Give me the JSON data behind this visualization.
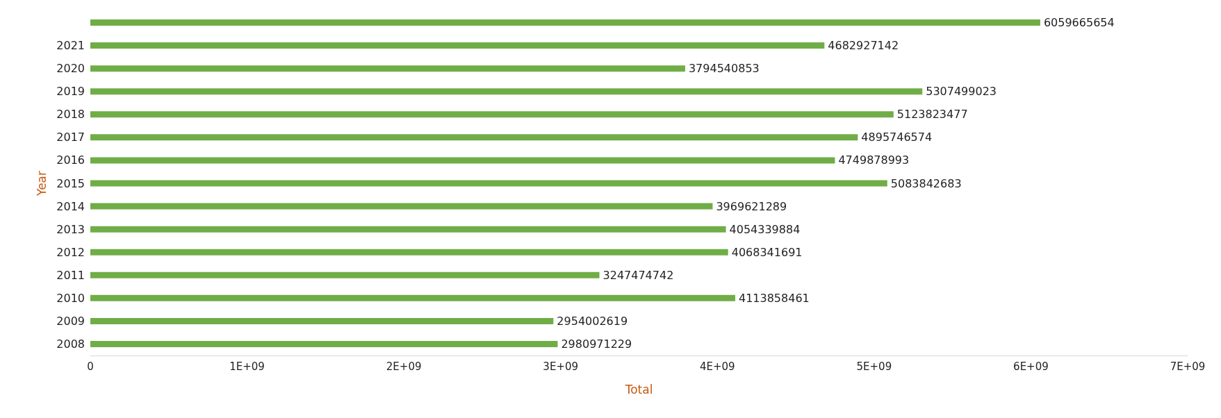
{
  "chart_data": {
    "type": "bar",
    "orientation": "horizontal",
    "xlabel": "Total",
    "ylabel": "Year",
    "categories": [
      null,
      "2021",
      "2020",
      "2019",
      "2018",
      "2017",
      "2016",
      "2015",
      "2014",
      "2013",
      "2012",
      "2011",
      "2010",
      "2009",
      "2008"
    ],
    "values": [
      6059665654,
      4682927142,
      3794540853,
      5307499023,
      5123823477,
      4895746574,
      4749878993,
      5083842683,
      3969621289,
      4054339884,
      4068341691,
      3247474742,
      4113858461,
      2954002619,
      2980971229
    ],
    "color": "#70ad47",
    "data_labels": true,
    "grid": false,
    "xlim": [
      0,
      7000000000
    ],
    "xticks": [
      0,
      {
        "value": 1000000000,
        "label": "1E+09"
      },
      {
        "value": 2000000000,
        "label": "2E+09"
      },
      {
        "value": 3000000000,
        "label": "3E+09"
      },
      {
        "value": 4000000000,
        "label": "4E+09"
      },
      {
        "value": 5000000000,
        "label": "5E+09"
      },
      {
        "value": 6000000000,
        "label": "6E+09"
      },
      {
        "value": 7000000000,
        "label": "7E+09"
      }
    ]
  }
}
